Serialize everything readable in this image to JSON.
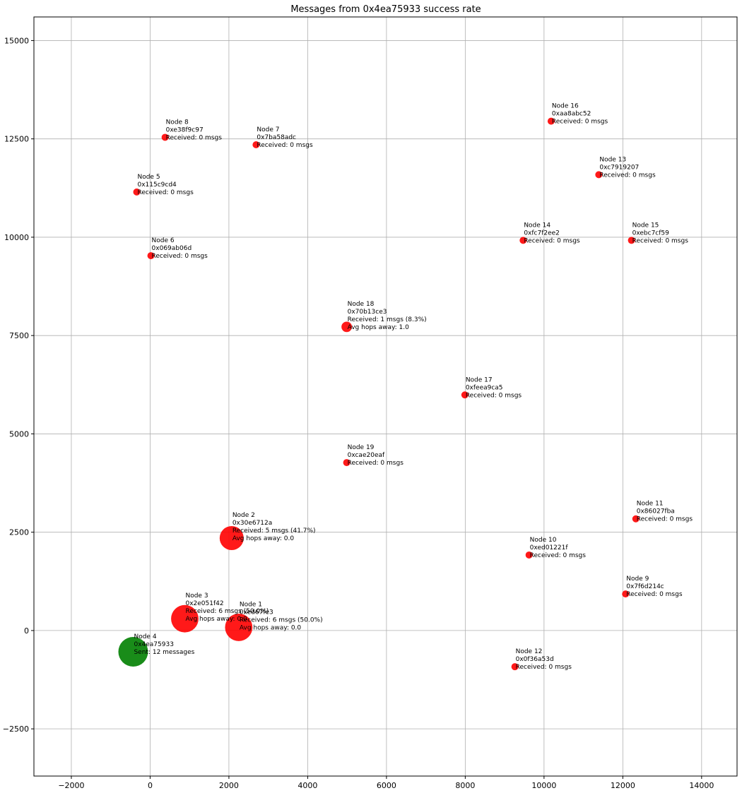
{
  "chart_data": {
    "type": "scatter",
    "title": "Messages from 0x4ea75933 success rate",
    "xlabel": "",
    "ylabel": "",
    "xlim": [
      -2950,
      14900
    ],
    "ylim": [
      -3700,
      15600
    ],
    "xticks": [
      -2000,
      0,
      2000,
      4000,
      6000,
      8000,
      10000,
      12000,
      14000
    ],
    "xtick_labels": [
      "−2000",
      "0",
      "2000",
      "4000",
      "6000",
      "8000",
      "10000",
      "12000",
      "14000"
    ],
    "yticks": [
      -2500,
      0,
      2500,
      5000,
      7500,
      10000,
      12500,
      15000
    ],
    "ytick_labels": [
      "−2500",
      "0",
      "2500",
      "5000",
      "7500",
      "10000",
      "12500",
      "15000"
    ],
    "grid": true,
    "colors": {
      "source": "#008000",
      "receiver": "#ff0000"
    },
    "points": [
      {
        "x": 2250,
        "y": 80,
        "role": "receiver",
        "received": 6,
        "lines": [
          "Node 1",
          "0xed67fe3",
          "Received: 6 msgs (50.0%)",
          "Avg hops away: 0.0"
        ]
      },
      {
        "x": 2070,
        "y": 2350,
        "role": "receiver",
        "received": 5,
        "lines": [
          "Node 2",
          "0x30e6712a",
          "Received: 5 msgs (41.7%)",
          "Avg hops away: 0.0"
        ]
      },
      {
        "x": 880,
        "y": 300,
        "role": "receiver",
        "received": 6,
        "lines": [
          "Node 3",
          "0x2e051f42",
          "Received: 6 msgs (50.0%)",
          "Avg hops away: 0.0"
        ]
      },
      {
        "x": -430,
        "y": -540,
        "role": "source",
        "sent": 12,
        "lines": [
          "Node 4",
          "0x4ea75933",
          "Sent: 12 messages"
        ]
      },
      {
        "x": -340,
        "y": 11150,
        "role": "receiver",
        "received": 0,
        "lines": [
          "Node 5",
          "0x115c9cd4",
          "Received: 0 msgs"
        ]
      },
      {
        "x": 20,
        "y": 9530,
        "role": "receiver",
        "received": 0,
        "lines": [
          "Node 6",
          "0x069ab06d",
          "Received: 0 msgs"
        ]
      },
      {
        "x": 2690,
        "y": 12350,
        "role": "receiver",
        "received": 0,
        "lines": [
          "Node 7",
          "0x7ba58adc",
          "Received: 0 msgs"
        ]
      },
      {
        "x": 380,
        "y": 12540,
        "role": "receiver",
        "received": 0,
        "lines": [
          "Node 8",
          "0xe38f9c97",
          "Received: 0 msgs"
        ]
      },
      {
        "x": 12070,
        "y": 930,
        "role": "receiver",
        "received": 0,
        "lines": [
          "Node 9",
          "0x7f6d214c",
          "Received: 0 msgs"
        ]
      },
      {
        "x": 9620,
        "y": 1920,
        "role": "receiver",
        "received": 0,
        "lines": [
          "Node 10",
          "0xed01221f",
          "Received: 0 msgs"
        ]
      },
      {
        "x": 12330,
        "y": 2840,
        "role": "receiver",
        "received": 0,
        "lines": [
          "Node 11",
          "0x86027fba",
          "Received: 0 msgs"
        ]
      },
      {
        "x": 9260,
        "y": -920,
        "role": "receiver",
        "received": 0,
        "lines": [
          "Node 12",
          "0x0f36a53d",
          "Received: 0 msgs"
        ]
      },
      {
        "x": 11390,
        "y": 11590,
        "role": "receiver",
        "received": 0,
        "lines": [
          "Node 13",
          "0xc7919207",
          "Received: 0 msgs"
        ]
      },
      {
        "x": 9470,
        "y": 9920,
        "role": "receiver",
        "received": 0,
        "lines": [
          "Node 14",
          "0xfc7f2ee2",
          "Received: 0 msgs"
        ]
      },
      {
        "x": 12220,
        "y": 9920,
        "role": "receiver",
        "received": 0,
        "lines": [
          "Node 15",
          "0xebc7cf59",
          "Received: 0 msgs"
        ]
      },
      {
        "x": 10180,
        "y": 12950,
        "role": "receiver",
        "received": 0,
        "lines": [
          "Node 16",
          "0xaa8abc52",
          "Received: 0 msgs"
        ]
      },
      {
        "x": 7990,
        "y": 5990,
        "role": "receiver",
        "received": 0,
        "lines": [
          "Node 17",
          "0xfeea9ca5",
          "Received: 0 msgs"
        ]
      },
      {
        "x": 4990,
        "y": 7720,
        "role": "receiver",
        "received": 1,
        "lines": [
          "Node 18",
          "0x70b13ce3",
          "Received: 1 msgs (8.3%)",
          "Avg hops away: 1.0"
        ]
      },
      {
        "x": 4990,
        "y": 4270,
        "role": "receiver",
        "received": 0,
        "lines": [
          "Node 19",
          "0xcae20eaf",
          "Received: 0 msgs"
        ]
      }
    ]
  }
}
